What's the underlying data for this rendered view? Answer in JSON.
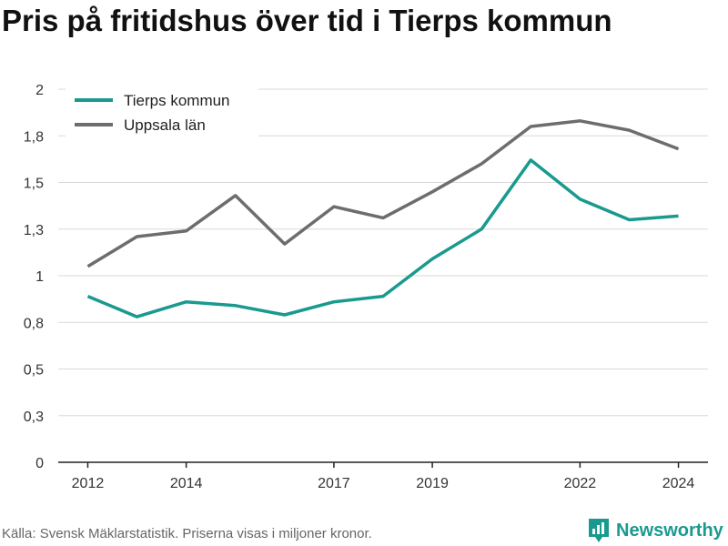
{
  "title": "Pris på fritidshus över tid i Tierps kommun",
  "footer": {
    "source": "Källa: Svensk Mäklarstatistik. Priserna visas i miljoner kronor.",
    "brand": "Newsworthy",
    "brand_icon": "bar-chart-icon"
  },
  "colors": {
    "tierp": "#1a9a8f",
    "uppsala": "#6d6d70",
    "grid": "#d8d8d8",
    "axis": "#222222"
  },
  "chart_data": {
    "type": "line",
    "title": "Pris på fritidshus över tid i Tierps kommun",
    "xlabel": "",
    "ylabel": "",
    "x": [
      2012,
      2013,
      2014,
      2015,
      2016,
      2017,
      2018,
      2019,
      2020,
      2021,
      2022,
      2023,
      2024
    ],
    "x_ticks": [
      2012,
      2014,
      2017,
      2019,
      2022,
      2024
    ],
    "x_tick_labels": [
      "2012",
      "2014",
      "2017",
      "2019",
      "2022",
      "2024"
    ],
    "ylim": [
      0,
      2
    ],
    "y_ticks": [
      0,
      0.25,
      0.5,
      0.75,
      1,
      1.25,
      1.5,
      1.75,
      2
    ],
    "y_tick_labels": [
      "0",
      "0,3",
      "0,5",
      "0,8",
      "1",
      "1,3",
      "1,5",
      "1,8",
      "2"
    ],
    "grid": true,
    "legend": "top-left",
    "series": [
      {
        "name": "Tierps kommun",
        "values": [
          0.89,
          0.78,
          0.86,
          0.84,
          0.79,
          0.86,
          0.89,
          1.09,
          1.25,
          1.62,
          1.41,
          1.3,
          1.32
        ]
      },
      {
        "name": "Uppsala län",
        "values": [
          1.05,
          1.21,
          1.24,
          1.43,
          1.17,
          1.37,
          1.31,
          1.45,
          1.6,
          1.8,
          1.83,
          1.78,
          1.68
        ]
      }
    ]
  }
}
